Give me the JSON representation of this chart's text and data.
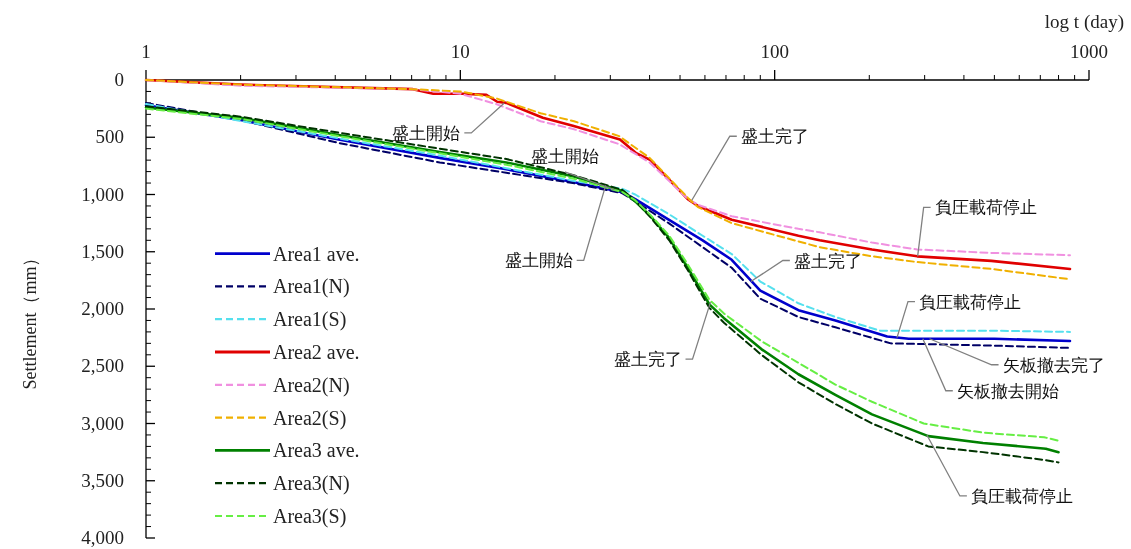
{
  "chart_data": {
    "type": "line",
    "xlabel": "log t (day)",
    "ylabel": "Settlement（mm）",
    "log": "x",
    "xlim": [
      1,
      1000
    ],
    "ylim": [
      4000,
      0
    ],
    "xticks": [
      1,
      10,
      100,
      1000
    ],
    "yticks": [
      0,
      500,
      {
        "value": 1000,
        "label": "1,000"
      },
      {
        "value": 1500,
        "label": "1,500"
      },
      {
        "value": 2000,
        "label": "2,000"
      },
      {
        "value": 2500,
        "label": "2,500"
      },
      {
        "value": 3000,
        "label": "3,000"
      },
      {
        "value": 3500,
        "label": "3,500"
      },
      {
        "value": 4000,
        "label": "4,000"
      }
    ],
    "legend": "bottom left",
    "series": [
      {
        "name": "Area1 ave.",
        "color": "#0000cc",
        "line_style": "solid",
        "x": [
          1,
          2,
          4.1,
          8.6,
          14,
          22.8,
          32.8,
          36,
          46,
          59,
          73,
          90,
          119,
          156,
          228,
          267,
          500,
          870
        ],
        "values": [
          220,
          350,
          520,
          680,
          780,
          890,
          980,
          1040,
          1220,
          1400,
          1570,
          1840,
          2010,
          2100,
          2240,
          2260,
          2260,
          2280
        ]
      },
      {
        "name": "Area1(N)",
        "color": "#000066",
        "line_style": "dashed",
        "x": [
          1,
          2,
          4.1,
          8.6,
          14,
          22.8,
          32.8,
          36,
          46,
          59,
          73,
          90,
          119,
          156,
          234,
          500,
          870
        ],
        "values": [
          200,
          350,
          550,
          720,
          810,
          900,
          990,
          1060,
          1250,
          1460,
          1640,
          1910,
          2070,
          2160,
          2300,
          2320,
          2340
        ]
      },
      {
        "name": "Area1(S)",
        "color": "#55e0ee",
        "line_style": "dashed",
        "x": [
          1,
          4.1,
          8.6,
          14,
          22.8,
          32.8,
          36,
          46,
          59,
          73,
          90,
          119,
          156,
          217,
          500,
          870
        ],
        "values": [
          210,
          510,
          660,
          770,
          880,
          950,
          1000,
          1170,
          1360,
          1520,
          1760,
          1950,
          2070,
          2190,
          2190,
          2200
        ]
      },
      {
        "name": "Area2 ave.",
        "color": "#e00000",
        "line_style": "solid",
        "x": [
          1,
          2,
          7.06,
          8.2,
          10.2,
          12.1,
          13.1,
          14,
          18.3,
          22.8,
          32.2,
          36.3,
          40.3,
          52.9,
          57,
          73,
          119,
          139,
          204,
          284,
          489,
          870
        ],
        "values": [
          0,
          40,
          80,
          120,
          120,
          130,
          190,
          200,
          330,
          400,
          520,
          640,
          700,
          1040,
          1100,
          1220,
          1360,
          1400,
          1480,
          1540,
          1580,
          1650
        ]
      },
      {
        "name": "Area2(N)",
        "color": "#f090e0",
        "line_style": "dashed",
        "x": [
          1,
          2,
          7,
          10,
          13,
          18,
          23,
          32,
          40,
          53,
          57,
          73,
          119,
          139,
          204,
          284,
          489,
          870
        ],
        "values": [
          0,
          50,
          80,
          120,
          210,
          360,
          430,
          560,
          720,
          1040,
          1090,
          1190,
          1300,
          1330,
          1420,
          1480,
          1510,
          1530
        ]
      },
      {
        "name": "Area2(S)",
        "color": "#f0b000",
        "line_style": "dashed",
        "x": [
          1,
          2,
          7,
          10,
          13,
          18,
          23,
          32,
          40,
          53,
          57,
          73,
          119,
          139,
          204,
          284,
          489,
          870
        ],
        "values": [
          0,
          40,
          80,
          100,
          160,
          290,
          360,
          490,
          680,
          1030,
          1110,
          1250,
          1410,
          1460,
          1540,
          1590,
          1650,
          1740
        ]
      },
      {
        "name": "Area3 ave.",
        "color": "#008000",
        "line_style": "solid",
        "x": [
          1,
          2,
          4.1,
          8.6,
          14,
          22.8,
          32.8,
          36,
          40.3,
          46.2,
          52.9,
          62,
          69,
          90.7,
          119,
          156,
          204,
          308,
          460,
          729,
          800
        ],
        "values": [
          240,
          330,
          480,
          630,
          720,
          840,
          970,
          1060,
          1190,
          1380,
          1640,
          1960,
          2080,
          2350,
          2570,
          2750,
          2920,
          3110,
          3170,
          3220,
          3250
        ]
      },
      {
        "name": "Area3(N)",
        "color": "#003300",
        "line_style": "dashed",
        "x": [
          1,
          2,
          4.1,
          8.6,
          14,
          22.8,
          32.8,
          36,
          40.3,
          46.2,
          52.9,
          62,
          69,
          90.7,
          119,
          156,
          204,
          308,
          460,
          729,
          800
        ],
        "values": [
          230,
          320,
          460,
          600,
          690,
          830,
          960,
          1050,
          1200,
          1400,
          1660,
          1990,
          2120,
          2400,
          2640,
          2830,
          3000,
          3200,
          3250,
          3320,
          3340
        ]
      },
      {
        "name": "Area3(S)",
        "color": "#66ee44",
        "line_style": "dashed",
        "x": [
          1,
          2,
          4.1,
          8.6,
          14,
          22.8,
          32.8,
          36,
          40.3,
          46.2,
          52.9,
          62,
          69,
          90.7,
          119,
          156,
          204,
          298,
          460,
          720,
          800
        ],
        "values": [
          250,
          340,
          490,
          640,
          740,
          860,
          980,
          1050,
          1180,
          1360,
          1610,
          1920,
          2040,
          2280,
          2470,
          2660,
          2810,
          3000,
          3080,
          3120,
          3150
        ]
      }
    ],
    "annotations": [
      {
        "text": "盛土開始",
        "x": 13.8,
        "y": 200
      },
      {
        "text": "盛土開始",
        "x": 31,
        "y": 960
      },
      {
        "text": "盛土開始",
        "x": 29,
        "y": 920
      },
      {
        "text": "盛土完了",
        "x": 54.5,
        "y": 1050
      },
      {
        "text": "盛土完了",
        "x": 84,
        "y": 1760
      },
      {
        "text": "盛土完了",
        "x": 62.5,
        "y": 1940
      },
      {
        "text": "負圧載荷停止",
        "x": 285,
        "y": 1540
      },
      {
        "text": "負圧載荷停止",
        "x": 245,
        "y": 2250
      },
      {
        "text": "矢板撤去完了",
        "x": 311,
        "y": 2260
      },
      {
        "text": "矢板撤去開始",
        "x": 296,
        "y": 2260
      },
      {
        "text": "負圧載荷停止",
        "x": 305,
        "y": 3100
      }
    ]
  }
}
